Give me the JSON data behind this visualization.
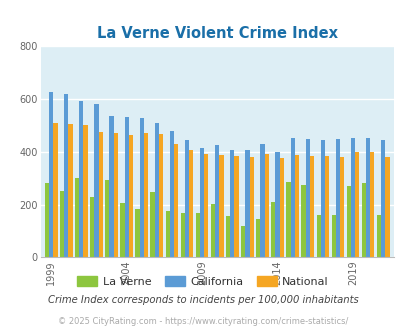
{
  "title": "La Verne Violent Crime Index",
  "title_color": "#1a6fa8",
  "background_color": "#ddeef5",
  "fig_background": "#ffffff",
  "la_verne_data": [
    282,
    253,
    300,
    228,
    295,
    205,
    183,
    247,
    175,
    168,
    167,
    202,
    158,
    118,
    145,
    210,
    285,
    273,
    160,
    160,
    270,
    280,
    160
  ],
  "california_data": [
    625,
    618,
    594,
    582,
    535,
    530,
    528,
    510,
    480,
    445,
    415,
    425,
    405,
    405,
    430,
    400,
    452,
    448,
    446,
    450,
    453,
    453,
    446
  ],
  "national_data": [
    510,
    505,
    500,
    475,
    470,
    465,
    470,
    467,
    430,
    405,
    390,
    387,
    385,
    380,
    390,
    376,
    386,
    383,
    383,
    380,
    398,
    398,
    380
  ],
  "num_years": 23,
  "start_year": 1999,
  "la_verne_color": "#8dc63f",
  "california_color": "#5b9bd5",
  "national_color": "#f5a623",
  "ylabel_max": 800,
  "yticks": [
    0,
    200,
    400,
    600,
    800
  ],
  "xtick_years": [
    1999,
    2004,
    2009,
    2014,
    2019
  ],
  "annotation": "Crime Index corresponds to incidents per 100,000 inhabitants",
  "annotation_color": "#444444",
  "copyright": "© 2025 CityRating.com - https://www.cityrating.com/crime-statistics/",
  "copyright_color": "#aaaaaa",
  "legend_labels": [
    "La Verne",
    "California",
    "National"
  ],
  "grid_color": "#ffffff",
  "bar_width": 0.28
}
